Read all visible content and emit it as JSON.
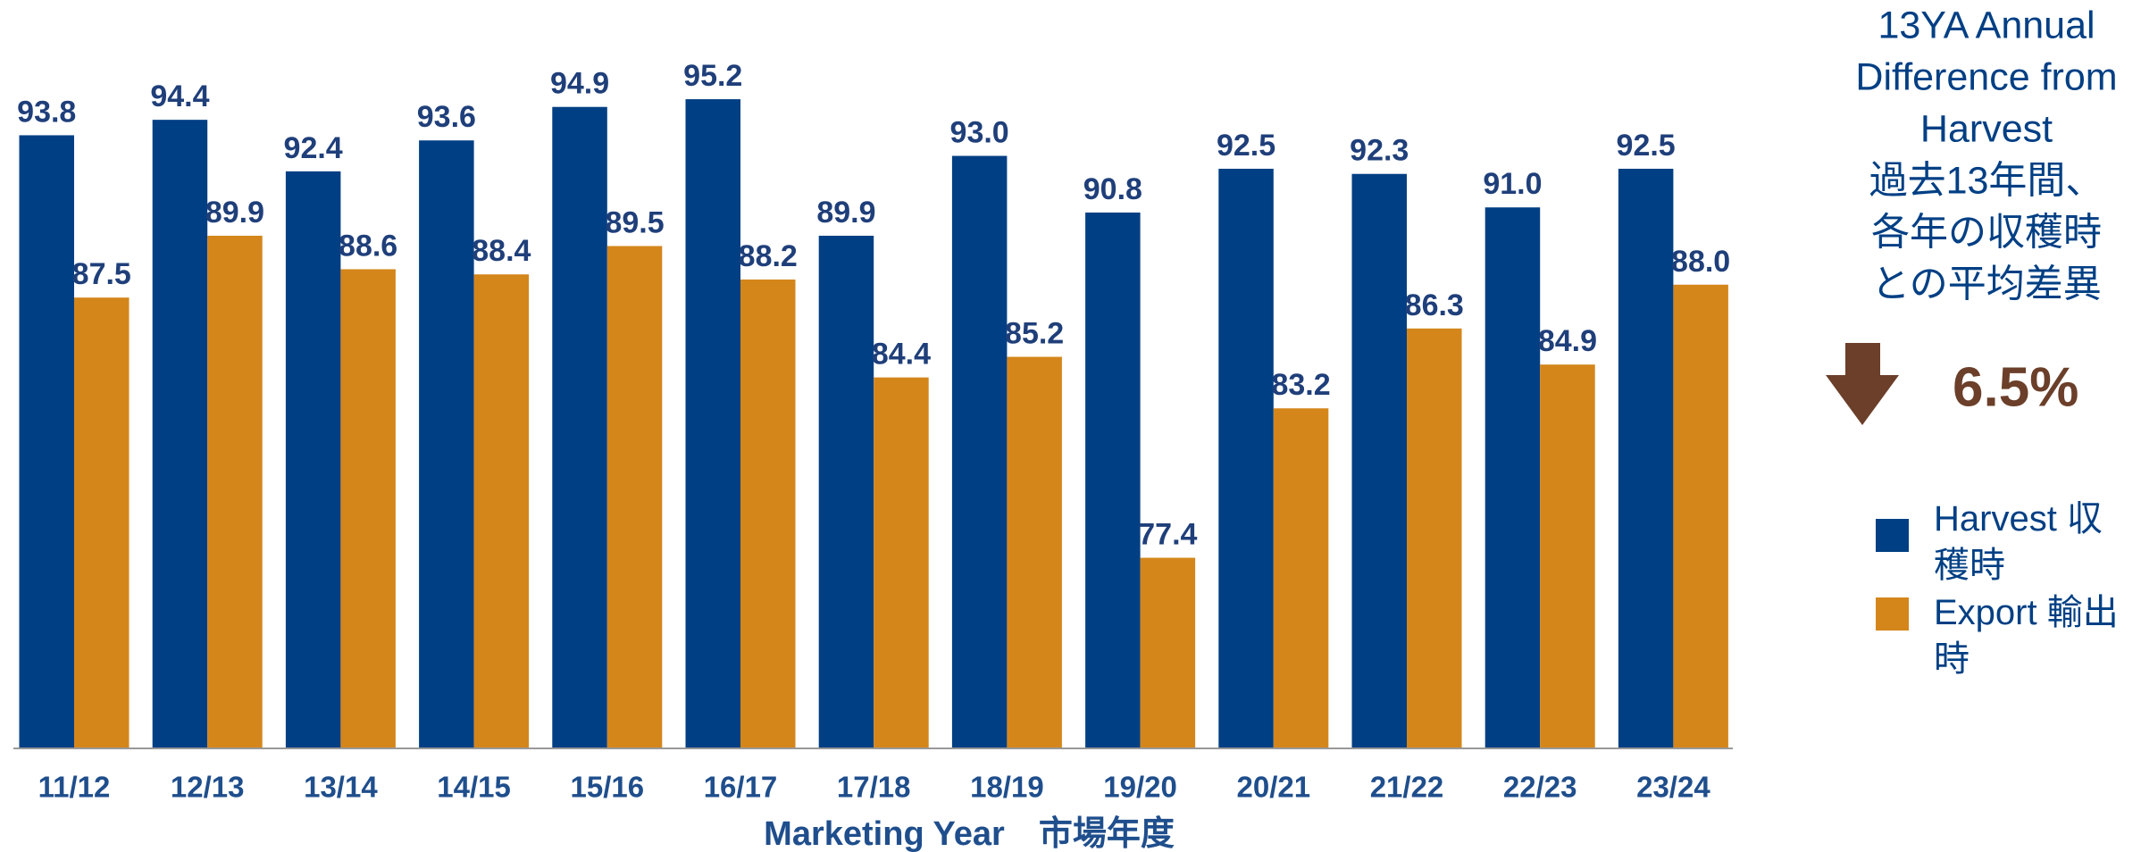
{
  "chart_data": {
    "type": "bar",
    "categories": [
      "11/12",
      "12/13",
      "13/14",
      "14/15",
      "15/16",
      "16/17",
      "17/18",
      "18/19",
      "19/20",
      "20/21",
      "21/22",
      "22/23",
      "23/24"
    ],
    "series": [
      {
        "name": "Harvest 収穫時",
        "color": "#003f84",
        "values": [
          93.8,
          94.4,
          92.4,
          93.6,
          94.9,
          95.2,
          89.9,
          93.0,
          90.8,
          92.5,
          92.3,
          91.0,
          92.5
        ],
        "value_labels": [
          "93.8",
          "94.4",
          "92.4",
          "93.6",
          "94.9",
          "95.2",
          "89.9",
          "93.0",
          "90.8",
          "92.5",
          "92.3",
          "91.0",
          "92.5"
        ]
      },
      {
        "name": "Export 輸出時",
        "color": "#d4861b",
        "values": [
          87.5,
          89.9,
          88.6,
          88.4,
          89.5,
          88.2,
          84.4,
          85.2,
          77.4,
          83.2,
          86.3,
          84.9,
          88.0
        ],
        "value_labels": [
          "87.5",
          "89.9",
          "88.6",
          "88.4",
          "89.5",
          "88.2",
          "84.4",
          "85.2",
          "77.4",
          "83.2",
          "86.3",
          "84.9",
          "88.0"
        ]
      }
    ],
    "x_label": "Marketing Year　市場年度",
    "ylim": [
      70,
      96
    ],
    "annotation_lines": [
      "13YA Annual",
      "Difference from",
      "Harvest",
      "過去13年間、",
      "各年の収穫時",
      "との平均差異"
    ],
    "annotation_value": "6.5%"
  }
}
